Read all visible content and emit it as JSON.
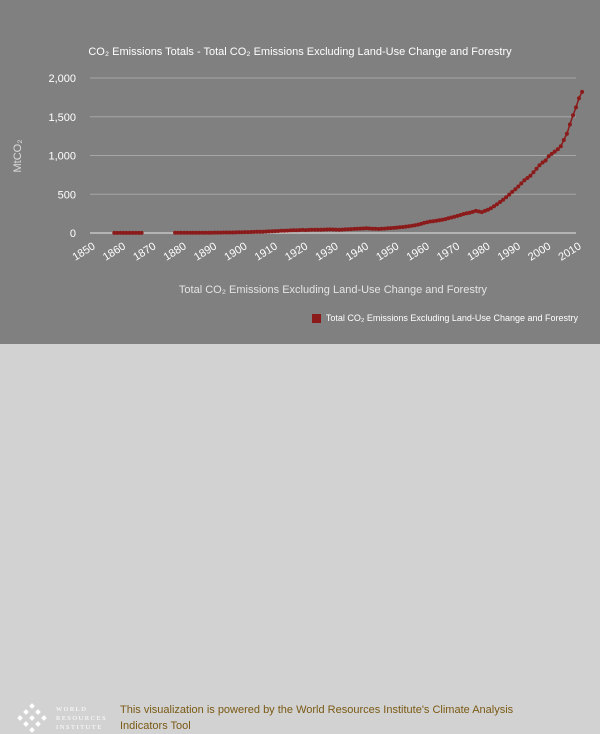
{
  "chart_data": {
    "type": "line",
    "title": "CO₂ Emissions Totals - Total CO₂ Emissions Excluding Land-Use Change and Forestry",
    "xlabel": "Total CO₂ Emissions Excluding Land-Use Change and Forestry",
    "ylabel": "MtCO₂",
    "xlim": [
      1850,
      2010
    ],
    "ylim": [
      0,
      2000
    ],
    "x_ticks": [
      "1850",
      "1860",
      "1870",
      "1880",
      "1890",
      "1900",
      "1910",
      "1920",
      "1930",
      "1940",
      "1950",
      "1960",
      "1970",
      "1980",
      "1990",
      "2000",
      "2010"
    ],
    "y_ticks": [
      "0",
      "500",
      "1,000",
      "1,500",
      "2,000"
    ],
    "grid": true,
    "legend_position": "bottom-right",
    "series": [
      {
        "name": "Total CO₂ Emissions Excluding Land-Use Change and Forestry",
        "color": "#8b1a1a",
        "segments": [
          [
            [
              1858,
              1
            ],
            [
              1859,
              1
            ],
            [
              1860,
              1
            ],
            [
              1861,
              1
            ],
            [
              1862,
              1
            ],
            [
              1863,
              1
            ],
            [
              1864,
              1
            ],
            [
              1865,
              1
            ],
            [
              1866,
              1
            ],
            [
              1867,
              1
            ]
          ],
          [
            [
              1878,
              2
            ],
            [
              1879,
              2
            ],
            [
              1880,
              2
            ],
            [
              1881,
              2
            ],
            [
              1882,
              2
            ],
            [
              1883,
              3
            ],
            [
              1884,
              3
            ],
            [
              1885,
              3
            ],
            [
              1886,
              3
            ],
            [
              1887,
              3
            ],
            [
              1888,
              4
            ],
            [
              1889,
              4
            ],
            [
              1890,
              4
            ],
            [
              1891,
              5
            ],
            [
              1892,
              5
            ],
            [
              1893,
              5
            ],
            [
              1894,
              6
            ],
            [
              1895,
              6
            ],
            [
              1896,
              7
            ],
            [
              1897,
              7
            ],
            [
              1898,
              8
            ],
            [
              1899,
              9
            ],
            [
              1900,
              10
            ],
            [
              1901,
              11
            ],
            [
              1902,
              12
            ],
            [
              1903,
              13
            ],
            [
              1904,
              14
            ],
            [
              1905,
              15
            ],
            [
              1906,
              16
            ],
            [
              1907,
              17
            ],
            [
              1908,
              19
            ],
            [
              1909,
              20
            ],
            [
              1910,
              22
            ],
            [
              1911,
              24
            ],
            [
              1912,
              26
            ],
            [
              1913,
              28
            ],
            [
              1914,
              30
            ],
            [
              1915,
              31
            ],
            [
              1916,
              33
            ],
            [
              1917,
              35
            ],
            [
              1918,
              36
            ],
            [
              1919,
              38
            ],
            [
              1920,
              40
            ],
            [
              1921,
              38
            ],
            [
              1922,
              40
            ],
            [
              1923,
              42
            ],
            [
              1924,
              41
            ],
            [
              1925,
              42
            ],
            [
              1926,
              43
            ],
            [
              1927,
              44
            ],
            [
              1928,
              45
            ],
            [
              1929,
              46
            ],
            [
              1930,
              45
            ],
            [
              1931,
              44
            ],
            [
              1932,
              43
            ],
            [
              1933,
              44
            ],
            [
              1934,
              46
            ],
            [
              1935,
              48
            ],
            [
              1936,
              50
            ],
            [
              1937,
              53
            ],
            [
              1938,
              55
            ],
            [
              1939,
              57
            ],
            [
              1940,
              58
            ],
            [
              1941,
              60
            ],
            [
              1942,
              58
            ],
            [
              1943,
              56
            ],
            [
              1944,
              55
            ],
            [
              1945,
              52
            ],
            [
              1946,
              55
            ],
            [
              1947,
              57
            ],
            [
              1948,
              60
            ],
            [
              1949,
              63
            ],
            [
              1950,
              66
            ],
            [
              1951,
              70
            ],
            [
              1952,
              74
            ],
            [
              1953,
              78
            ],
            [
              1954,
              83
            ],
            [
              1955,
              88
            ],
            [
              1956,
              94
            ],
            [
              1957,
              100
            ],
            [
              1958,
              108
            ],
            [
              1959,
              118
            ],
            [
              1960,
              130
            ],
            [
              1961,
              140
            ],
            [
              1962,
              148
            ],
            [
              1963,
              152
            ],
            [
              1964,
              158
            ],
            [
              1965,
              165
            ],
            [
              1966,
              172
            ],
            [
              1967,
              180
            ],
            [
              1968,
              190
            ],
            [
              1969,
              200
            ],
            [
              1970,
              210
            ],
            [
              1971,
              220
            ],
            [
              1972,
              232
            ],
            [
              1973,
              245
            ],
            [
              1974,
              255
            ],
            [
              1975,
              262
            ],
            [
              1976,
              272
            ],
            [
              1977,
              285
            ],
            [
              1978,
              278
            ],
            [
              1979,
              270
            ],
            [
              1980,
              285
            ],
            [
              1981,
              300
            ],
            [
              1982,
              320
            ],
            [
              1983,
              345
            ],
            [
              1984,
              372
            ],
            [
              1985,
              400
            ],
            [
              1986,
              430
            ],
            [
              1987,
              460
            ],
            [
              1988,
              495
            ],
            [
              1989,
              530
            ],
            [
              1990,
              565
            ],
            [
              1991,
              600
            ],
            [
              1992,
              640
            ],
            [
              1993,
              680
            ],
            [
              1994,
              710
            ],
            [
              1995,
              740
            ],
            [
              1996,
              785
            ],
            [
              1997,
              830
            ],
            [
              1998,
              875
            ],
            [
              1999,
              910
            ],
            [
              2000,
              935
            ],
            [
              2001,
              990
            ],
            [
              2002,
              1020
            ],
            [
              2003,
              1050
            ],
            [
              2004,
              1080
            ],
            [
              2005,
              1120
            ],
            [
              2006,
              1200
            ],
            [
              2007,
              1280
            ],
            [
              2008,
              1400
            ],
            [
              2009,
              1520
            ],
            [
              2010,
              1620
            ],
            [
              2011,
              1740
            ],
            [
              2012,
              1820
            ]
          ]
        ]
      }
    ]
  },
  "footer": {
    "logo_lines": [
      "WORLD",
      "RESOURCES",
      "INSTITUTE"
    ],
    "credit": "This visualization is powered by the World Resources Institute's Climate Analysis Indicators Tool"
  }
}
